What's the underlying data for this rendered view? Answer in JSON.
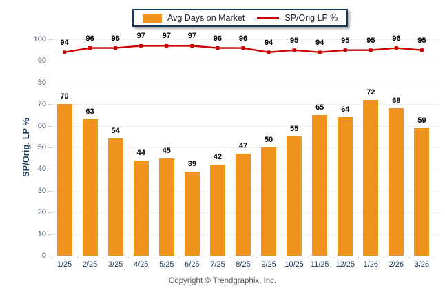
{
  "legend": {
    "bar_label": "Avg Days on Market",
    "line_label": "SP/Orig LP %"
  },
  "footer": {
    "copyright": "Copyright © Trendgraphix, Inc."
  },
  "colors": {
    "bar_orange": "#F0921E",
    "line_red": "#CC0000",
    "axis_navy": "#16365C",
    "ytick_text": "#44546A",
    "gridline": "#EFEFEF",
    "baseline": "#D6D6D6",
    "value_label": "#000000",
    "copyright_text": "#595959",
    "legend_border": "#16365C"
  },
  "chart_data": {
    "type": "bar",
    "title": "",
    "xlabel": "",
    "ylabel": "SP/Orig. LP %",
    "ylim": [
      0,
      100
    ],
    "yticks": [
      0,
      10,
      20,
      30,
      40,
      50,
      60,
      70,
      80,
      90,
      100
    ],
    "grid": true,
    "legend_position": "top-center",
    "categories": [
      "1/25",
      "2/25",
      "3/25",
      "4/25",
      "5/25",
      "6/25",
      "7/25",
      "8/25",
      "9/25",
      "10/25",
      "11/25",
      "12/25",
      "1/26",
      "2/26",
      "3/26"
    ],
    "series": [
      {
        "name": "Avg Days on Market",
        "type": "bar",
        "color": "#F0921E",
        "values": [
          70,
          63,
          54,
          44,
          45,
          39,
          42,
          47,
          50,
          55,
          65,
          64,
          72,
          68,
          59
        ]
      },
      {
        "name": "SP/Orig LP %",
        "type": "line",
        "color": "#CC0000",
        "values": [
          94,
          96,
          96,
          97,
          97,
          97,
          96,
          96,
          94,
          95,
          94,
          95,
          95,
          96,
          95
        ]
      }
    ]
  }
}
